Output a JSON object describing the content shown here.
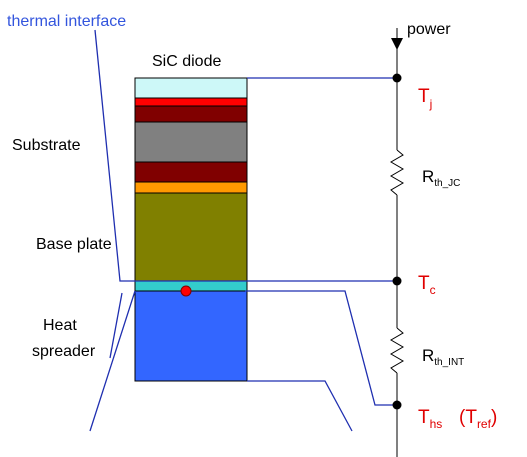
{
  "labels": {
    "thermal_interface": "thermal interface",
    "sic_diode": "SiC diode",
    "substrate": "Substrate",
    "base_plate": "Base plate",
    "heat": "Heat",
    "spreader": "spreader",
    "power": "power"
  },
  "nodes": {
    "tj_main": "T",
    "tj_sub": "j",
    "tc_main": "T",
    "tc_sub": "c",
    "ths_main": "T",
    "ths_sub": "hs",
    "tref_open": "(T",
    "tref_sub": "ref",
    "tref_close": ")"
  },
  "resistors": {
    "rjc_main": "R",
    "rjc_sub": "th_JC",
    "rint_main": "R",
    "rint_sub": "th_INT"
  },
  "colors": {
    "blue_line": "#1f2fb0",
    "label_blue": "#3355dd",
    "node_red": "#e00000",
    "die": "#cdf8f8",
    "red_layer": "#ff0000",
    "dark_red": "#800000",
    "gray": "#808080",
    "orange": "#ff9900",
    "olive": "#808000",
    "interface": "#33cccc",
    "spreader": "#3366ff"
  }
}
